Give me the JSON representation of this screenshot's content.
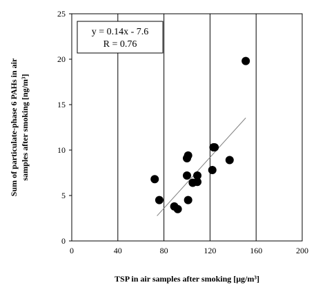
{
  "chart_data": {
    "type": "scatter",
    "title": "",
    "xlabel": "TSP  in air samples after smoking [μg/m³]",
    "ylabel_line1": "Sum of particulate-phase 6 PAHs in air",
    "ylabel_line2": "samples after smoking [ng/m³]",
    "xlim": [
      0,
      200
    ],
    "ylim": [
      0,
      25
    ],
    "xticks": [
      0,
      40,
      80,
      120,
      160,
      200
    ],
    "yticks": [
      0,
      5,
      10,
      15,
      20,
      25
    ],
    "grid": "vertical",
    "points": [
      {
        "x": 72,
        "y": 6.8
      },
      {
        "x": 76,
        "y": 4.5
      },
      {
        "x": 89,
        "y": 3.8
      },
      {
        "x": 92,
        "y": 3.5
      },
      {
        "x": 100,
        "y": 7.2
      },
      {
        "x": 100,
        "y": 9.1
      },
      {
        "x": 101,
        "y": 9.4
      },
      {
        "x": 101,
        "y": 4.5
      },
      {
        "x": 105,
        "y": 6.4
      },
      {
        "x": 109,
        "y": 6.5
      },
      {
        "x": 109,
        "y": 7.2
      },
      {
        "x": 122,
        "y": 7.8
      },
      {
        "x": 123,
        "y": 10.3
      },
      {
        "x": 124,
        "y": 10.3
      },
      {
        "x": 137,
        "y": 8.9
      },
      {
        "x": 151,
        "y": 19.8
      }
    ],
    "trendline": {
      "slope": 0.14,
      "intercept": -7.6,
      "x_start": 74,
      "x_end": 151
    },
    "annotation": {
      "equation": "y = 0.14x - 7.6",
      "r_value": "R = 0.76"
    },
    "colors": {
      "points": "#000000",
      "grid": "#000000",
      "trendline": "#808080"
    }
  }
}
